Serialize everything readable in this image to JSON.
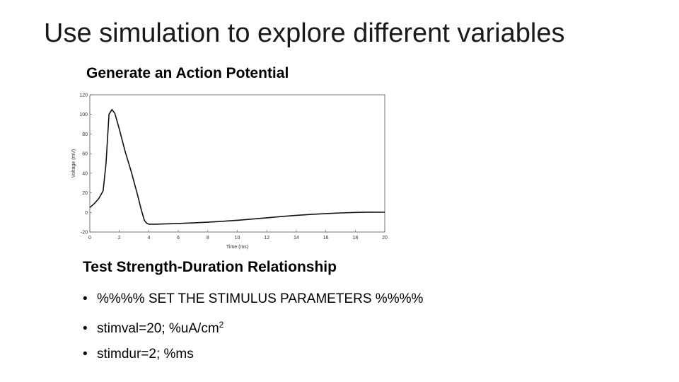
{
  "slide": {
    "title": "Use simulation to explore different variables",
    "subtitle": "Generate an Action Potential",
    "section_heading": "Test Strength-Duration Relationship",
    "bullets": [
      {
        "text": "%%%% SET THE STIMULUS PARAMETERS %%%%",
        "sup": ""
      },
      {
        "text": "stimval=20; %uA/cm",
        "sup": "2"
      },
      {
        "text": "stimdur=2; %ms",
        "sup": ""
      }
    ]
  },
  "chart_data": {
    "type": "line",
    "title": "",
    "xlabel": "Time (ms)",
    "ylabel": "Voltage (mV)",
    "xlim": [
      0,
      20
    ],
    "ylim": [
      -20,
      120
    ],
    "xticks": [
      0,
      2,
      4,
      6,
      8,
      10,
      12,
      14,
      16,
      18,
      20
    ],
    "yticks": [
      120,
      100,
      80,
      60,
      40,
      20,
      0,
      -20
    ],
    "grid": false,
    "series": [
      {
        "x": [
          0,
          0.3,
          0.6,
          0.9,
          1.1,
          1.3,
          1.5,
          1.7,
          2.0,
          2.4,
          2.8,
          3.2,
          3.5,
          3.7,
          3.85,
          4.0,
          4.5,
          5,
          6,
          7,
          8,
          9,
          10,
          11,
          12,
          13,
          14,
          15,
          16,
          17,
          18,
          19,
          20
        ],
        "y": [
          5,
          9,
          14,
          22,
          50,
          100,
          105,
          101,
          85,
          62,
          42,
          20,
          2,
          -8,
          -11,
          -12,
          -12,
          -11.8,
          -11.3,
          -10.7,
          -10,
          -9,
          -8,
          -6.8,
          -5.5,
          -4.2,
          -3,
          -2,
          -1.2,
          -0.5,
          0,
          0.3,
          0.2
        ]
      }
    ]
  }
}
